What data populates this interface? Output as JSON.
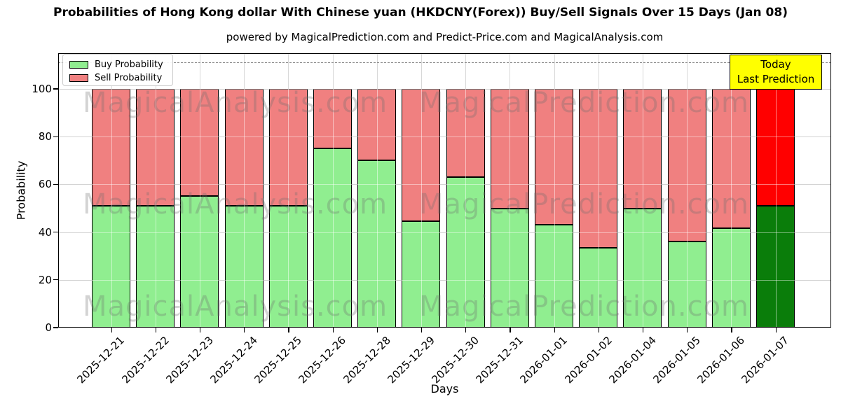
{
  "header": {
    "title": "Probabilities of Hong Kong dollar With Chinese yuan (HKDCNY(Forex)) Buy/Sell Signals Over 15 Days (Jan 08)",
    "subtitle": "powered by MagicalPrediction.com and Predict-Price.com and MagicalAnalysis.com"
  },
  "chart_data": {
    "type": "bar",
    "stacked": true,
    "title": "Probabilities of Hong Kong dollar With Chinese yuan (HKDCNY(Forex)) Buy/Sell Signals Over 15 Days (Jan 08)",
    "subtitle": "powered by MagicalPrediction.com and Predict-Price.com and MagicalAnalysis.com",
    "xlabel": "Days",
    "ylabel": "Probability",
    "categories": [
      "2025-12-21",
      "2025-12-22",
      "2025-12-23",
      "2025-12-24",
      "2025-12-25",
      "2025-12-26",
      "2025-12-28",
      "2025-12-29",
      "2025-12-30",
      "2025-12-31",
      "2026-01-01",
      "2026-01-02",
      "2026-01-04",
      "2026-01-05",
      "2026-01-06",
      "2026-01-07"
    ],
    "series": [
      {
        "name": "Buy Probability",
        "color": "#90EE90",
        "values": [
          51,
          51,
          55,
          51,
          51,
          75,
          70,
          44.5,
          63,
          50,
          43,
          33.5,
          50,
          36,
          41.5,
          51
        ]
      },
      {
        "name": "Sell Probability",
        "color": "#F08080",
        "values": [
          49,
          49,
          45,
          49,
          49,
          25,
          30,
          55.5,
          37,
          50,
          57,
          66.5,
          50,
          64,
          58.5,
          49
        ]
      }
    ],
    "today_bar": {
      "index": 15,
      "buy_color": "#0A7D0A",
      "sell_color": "#FF0000"
    },
    "bar_edge_color": "#000000",
    "grid": true,
    "grid_color": "#b0b0b0",
    "ylim": [
      0,
      115
    ],
    "yticks": [
      0,
      20,
      40,
      60,
      80,
      100
    ],
    "dashed_line_y": 111,
    "legend_position": "upper left"
  },
  "legend": {
    "items": [
      {
        "label": "Buy Probability",
        "color": "#90EE90"
      },
      {
        "label": "Sell Probability",
        "color": "#F08080"
      }
    ]
  },
  "annotation": {
    "line1": "Today",
    "line2": "Last Prediction",
    "bg": "#FFFF00"
  },
  "watermarks": {
    "left": "MagicalAnalysis.com",
    "right": "MagicalPrediction.com"
  }
}
